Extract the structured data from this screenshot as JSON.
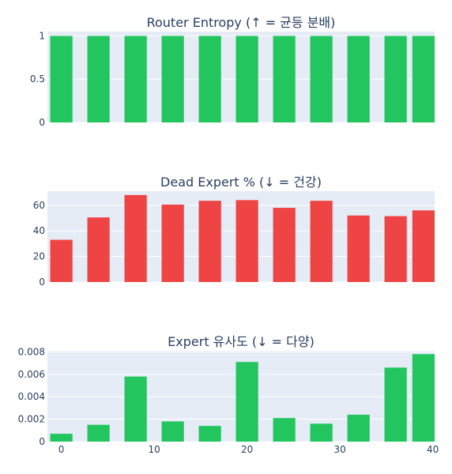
{
  "chart_data": [
    {
      "type": "bar",
      "title": "Router Entropy (↑ = 균등 분배)",
      "x": [
        0,
        4,
        8,
        12,
        16,
        20,
        24,
        28,
        32,
        36,
        39
      ],
      "values": [
        1,
        1,
        1,
        1,
        1,
        1,
        1,
        1,
        1,
        1,
        1
      ],
      "ylim": [
        0,
        1.05
      ],
      "yticks": [
        0,
        0.5,
        1
      ],
      "ytick_labels": [
        "0",
        "0.5",
        "1"
      ],
      "xlim": [
        -1.5,
        40.2
      ],
      "color": "#22c55e",
      "show_xticks": false
    },
    {
      "type": "bar",
      "title": "Dead Expert % (↓ = 건강)",
      "x": [
        0,
        4,
        8,
        12,
        16,
        20,
        24,
        28,
        32,
        36,
        39
      ],
      "values": [
        33,
        50.5,
        68,
        60.5,
        63.5,
        64,
        58,
        63.5,
        52,
        51.5,
        56
      ],
      "ylim": [
        0,
        71
      ],
      "yticks": [
        0,
        20,
        40,
        60
      ],
      "ytick_labels": [
        "0",
        "20",
        "40",
        "60"
      ],
      "xlim": [
        -1.5,
        40.2
      ],
      "color": "#ef4444",
      "show_xticks": false
    },
    {
      "type": "bar",
      "title": "Expert 유사도 (↓ = 다양)",
      "x": [
        0,
        4,
        8,
        12,
        16,
        20,
        24,
        28,
        32,
        36,
        39
      ],
      "values": [
        0.0007,
        0.0015,
        0.0058,
        0.0018,
        0.0014,
        0.0071,
        0.0021,
        0.0016,
        0.0024,
        0.0066,
        0.0078
      ],
      "ylim": [
        0,
        0.0081
      ],
      "yticks": [
        0,
        0.002,
        0.004,
        0.006,
        0.008
      ],
      "ytick_labels": [
        "0",
        "0.002",
        "0.004",
        "0.006",
        "0.008"
      ],
      "xlim": [
        -1.5,
        40.2
      ],
      "xticks": [
        0,
        10,
        20,
        30,
        40
      ],
      "xtick_labels": [
        "0",
        "10",
        "20",
        "30",
        "40"
      ],
      "color": "#22c55e",
      "show_xticks": true
    }
  ]
}
